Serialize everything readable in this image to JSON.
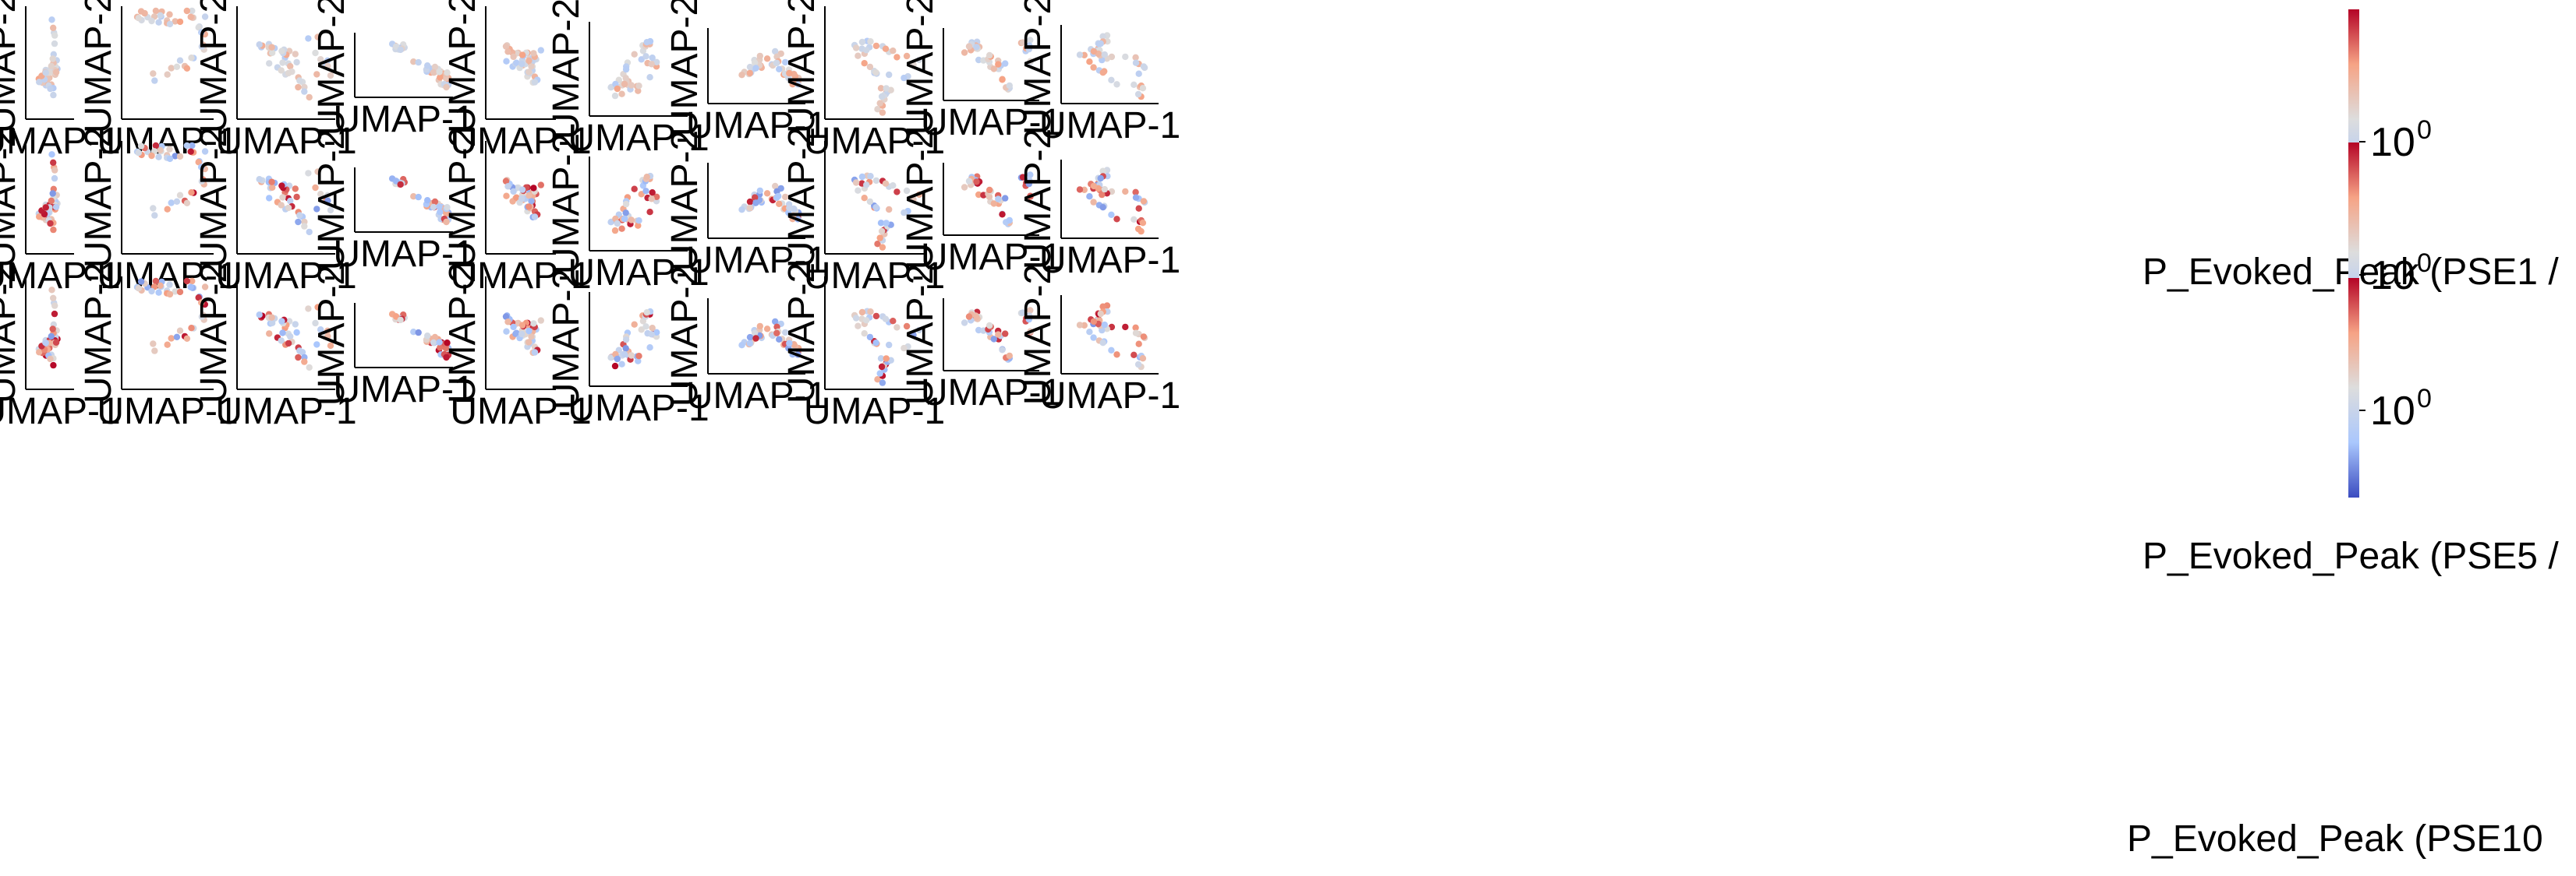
{
  "figure": {
    "row_titles": [
      "P_Evoked_Peak (PSE1 /",
      "P_Evoked_Peak (PSE5 /",
      "P_Evoked_Peak (PSE10"
    ],
    "colorbar": {
      "tick_base": "10",
      "tick_exponent": "0",
      "cmap": [
        "#3b4cc0",
        "#aac7fd",
        "#dddddd",
        "#f6a385",
        "#b40426"
      ]
    }
  },
  "chart_data": {
    "type": "scatter",
    "title": "",
    "xlabel": "UMAP-1",
    "ylabel": "UMAP-2",
    "grid": false,
    "color_scale": "log",
    "legend": "colorbar-right",
    "panels_per_row": 10,
    "rows": 3,
    "points_per_panel": 42,
    "umap_embeddings_note": "x/y in UMAP units (0-10); c = normalized log color value 0..1 per row",
    "seed": 20240611
  }
}
